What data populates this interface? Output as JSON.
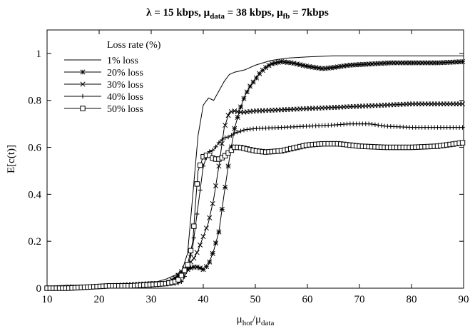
{
  "chart_data": {
    "type": "line",
    "title_parts": {
      "lambda_label": "λ = 15 kbps, μ",
      "data_sub": "data",
      "mu_data_value": " = 38 kbps, μ",
      "fb_sub": "fb",
      "mu_fb_value": " = 7kbps"
    },
    "ylabel": "E[c(t)]",
    "xlabel": {
      "main": "μ",
      "sub1": "hot",
      "slash": "/μ",
      "sub2": "data"
    },
    "xlim": [
      10,
      90
    ],
    "ylim": [
      0,
      1.1
    ],
    "x_ticks": [
      10,
      20,
      30,
      40,
      50,
      60,
      70,
      80,
      90
    ],
    "y_ticks": [
      0,
      0.2,
      0.4,
      0.6,
      0.8,
      1
    ],
    "y_tick_labels": [
      "0",
      "0.2",
      "0.4",
      "0.6",
      "0.8",
      "1"
    ],
    "grid": false,
    "legend_title": "Loss rate (%)",
    "legend_position": "top-left",
    "series": [
      {
        "name": "1% loss",
        "marker": "none",
        "points": [
          [
            10,
            0.0
          ],
          [
            14,
            0.005
          ],
          [
            18,
            0.005
          ],
          [
            22,
            0.01
          ],
          [
            26,
            0.015
          ],
          [
            30,
            0.02
          ],
          [
            33,
            0.04
          ],
          [
            35,
            0.06
          ],
          [
            36,
            0.08
          ],
          [
            37,
            0.15
          ],
          [
            38,
            0.4
          ],
          [
            39,
            0.65
          ],
          [
            40,
            0.78
          ],
          [
            41,
            0.81
          ],
          [
            42,
            0.8
          ],
          [
            43,
            0.84
          ],
          [
            44,
            0.88
          ],
          [
            45,
            0.91
          ],
          [
            46,
            0.92
          ],
          [
            48,
            0.93
          ],
          [
            50,
            0.95
          ],
          [
            53,
            0.97
          ],
          [
            56,
            0.98
          ],
          [
            60,
            0.985
          ],
          [
            65,
            0.99
          ],
          [
            70,
            0.99
          ],
          [
            80,
            0.99
          ],
          [
            90,
            0.99
          ]
        ]
      },
      {
        "name": "20% loss",
        "marker": "star",
        "points": [
          [
            10,
            0.0
          ],
          [
            14,
            0.0
          ],
          [
            18,
            0.005
          ],
          [
            22,
            0.01
          ],
          [
            26,
            0.01
          ],
          [
            30,
            0.02
          ],
          [
            33,
            0.02
          ],
          [
            35,
            0.05
          ],
          [
            37,
            0.08
          ],
          [
            38,
            0.09
          ],
          [
            39,
            0.09
          ],
          [
            40,
            0.08
          ],
          [
            41,
            0.1
          ],
          [
            42,
            0.16
          ],
          [
            43,
            0.24
          ],
          [
            44,
            0.4
          ],
          [
            45,
            0.55
          ],
          [
            46,
            0.68
          ],
          [
            47,
            0.76
          ],
          [
            48,
            0.82
          ],
          [
            49,
            0.86
          ],
          [
            50,
            0.89
          ],
          [
            51,
            0.92
          ],
          [
            52,
            0.94
          ],
          [
            53,
            0.955
          ],
          [
            55,
            0.965
          ],
          [
            57,
            0.96
          ],
          [
            60,
            0.945
          ],
          [
            63,
            0.935
          ],
          [
            65,
            0.94
          ],
          [
            68,
            0.95
          ],
          [
            72,
            0.955
          ],
          [
            76,
            0.96
          ],
          [
            80,
            0.96
          ],
          [
            85,
            0.96
          ],
          [
            90,
            0.965
          ]
        ]
      },
      {
        "name": "30% loss",
        "marker": "x",
        "points": [
          [
            10,
            0.0
          ],
          [
            14,
            0.005
          ],
          [
            18,
            0.005
          ],
          [
            22,
            0.01
          ],
          [
            26,
            0.015
          ],
          [
            30,
            0.02
          ],
          [
            33,
            0.02
          ],
          [
            35,
            0.05
          ],
          [
            37,
            0.1
          ],
          [
            38,
            0.12
          ],
          [
            39,
            0.16
          ],
          [
            40,
            0.22
          ],
          [
            41,
            0.28
          ],
          [
            42,
            0.38
          ],
          [
            43,
            0.52
          ],
          [
            44,
            0.68
          ],
          [
            45,
            0.75
          ],
          [
            46,
            0.755
          ],
          [
            47,
            0.75
          ],
          [
            48,
            0.75
          ],
          [
            50,
            0.755
          ],
          [
            55,
            0.76
          ],
          [
            60,
            0.765
          ],
          [
            65,
            0.77
          ],
          [
            70,
            0.775
          ],
          [
            75,
            0.78
          ],
          [
            80,
            0.785
          ],
          [
            85,
            0.785
          ],
          [
            90,
            0.785
          ]
        ]
      },
      {
        "name": "40% loss",
        "marker": "plus",
        "points": [
          [
            10,
            0.0
          ],
          [
            14,
            0.005
          ],
          [
            18,
            0.005
          ],
          [
            22,
            0.01
          ],
          [
            26,
            0.01
          ],
          [
            30,
            0.015
          ],
          [
            33,
            0.02
          ],
          [
            35,
            0.02
          ],
          [
            36,
            0.03
          ],
          [
            37,
            0.08
          ],
          [
            38,
            0.18
          ],
          [
            39,
            0.35
          ],
          [
            40,
            0.52
          ],
          [
            41,
            0.58
          ],
          [
            42,
            0.59
          ],
          [
            43,
            0.62
          ],
          [
            44,
            0.64
          ],
          [
            45,
            0.645
          ],
          [
            46,
            0.66
          ],
          [
            48,
            0.675
          ],
          [
            50,
            0.68
          ],
          [
            55,
            0.685
          ],
          [
            60,
            0.69
          ],
          [
            65,
            0.695
          ],
          [
            68,
            0.7
          ],
          [
            72,
            0.7
          ],
          [
            75,
            0.69
          ],
          [
            80,
            0.685
          ],
          [
            85,
            0.685
          ],
          [
            90,
            0.685
          ]
        ]
      },
      {
        "name": "50% loss",
        "marker": "square",
        "points": [
          [
            10,
            0.0
          ],
          [
            14,
            0.0
          ],
          [
            18,
            0.005
          ],
          [
            22,
            0.01
          ],
          [
            26,
            0.01
          ],
          [
            30,
            0.015
          ],
          [
            33,
            0.02
          ],
          [
            35,
            0.03
          ],
          [
            36,
            0.06
          ],
          [
            37,
            0.1
          ],
          [
            38,
            0.2
          ],
          [
            38.5,
            0.36
          ],
          [
            39,
            0.5
          ],
          [
            40,
            0.56
          ],
          [
            41,
            0.57
          ],
          [
            42,
            0.55
          ],
          [
            43,
            0.55
          ],
          [
            44,
            0.56
          ],
          [
            45,
            0.58
          ],
          [
            46,
            0.6
          ],
          [
            47,
            0.6
          ],
          [
            48,
            0.595
          ],
          [
            50,
            0.585
          ],
          [
            52,
            0.58
          ],
          [
            55,
            0.585
          ],
          [
            58,
            0.6
          ],
          [
            60,
            0.61
          ],
          [
            63,
            0.615
          ],
          [
            66,
            0.615
          ],
          [
            70,
            0.605
          ],
          [
            75,
            0.6
          ],
          [
            80,
            0.6
          ],
          [
            85,
            0.605
          ],
          [
            90,
            0.62
          ]
        ]
      }
    ]
  }
}
